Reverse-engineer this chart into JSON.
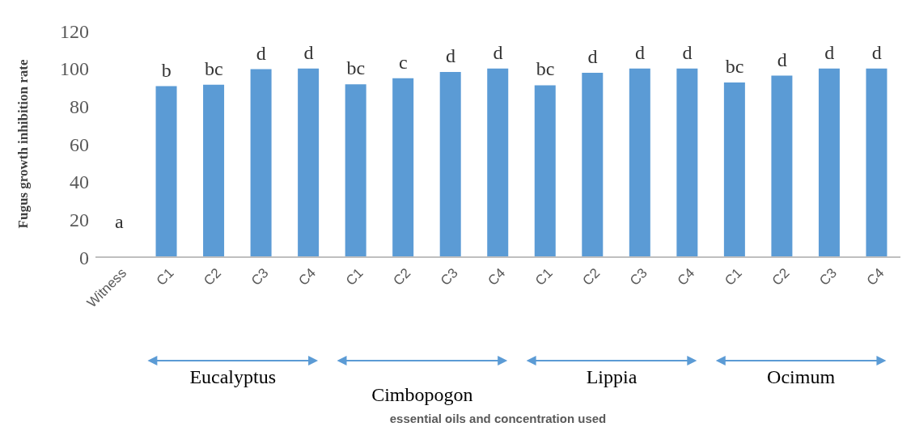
{
  "chart_data": {
    "type": "bar",
    "ylabel": "Fugus growth  inhibition rate",
    "categories": [
      "Witness",
      "C1",
      "C2",
      "C3",
      "C4",
      "C1",
      "C2",
      "C3",
      "C4",
      "C1",
      "C2",
      "C3",
      "C4",
      "C1",
      "C2",
      "C3",
      "C4"
    ],
    "values": [
      0,
      90.6,
      91.4,
      99.6,
      100,
      91.6,
      94.8,
      98.1,
      100,
      91.1,
      97.7,
      100,
      100,
      92.6,
      96.2,
      100,
      100
    ],
    "value_labels": [
      "a",
      "b",
      "bc",
      "d",
      "d",
      "bc",
      "c",
      "d",
      "d",
      "bc",
      "d",
      "d",
      "d",
      "bc",
      "d",
      "d",
      "d"
    ],
    "color": "#5b9bd5",
    "ylim": [
      0,
      120
    ],
    "yticks": [
      0,
      20,
      40,
      60,
      80,
      100,
      120
    ],
    "annotations": [
      "Eucalyptus",
      "Cimbopogon",
      "Lippia",
      "Ocimum",
      "essential oils and concentration used"
    ]
  }
}
